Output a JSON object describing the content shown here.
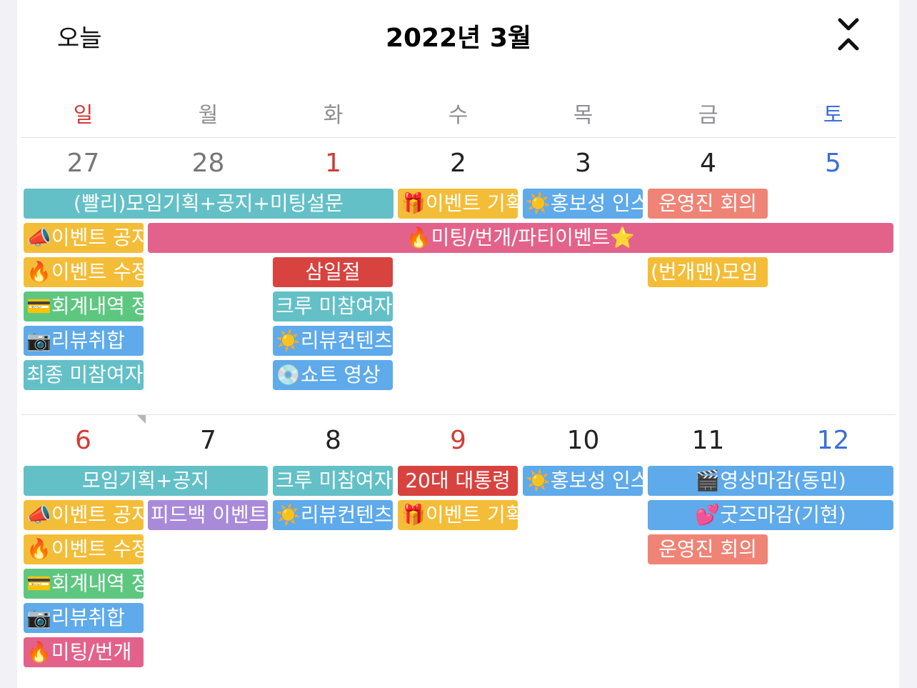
{
  "header": {
    "today_label": "오늘",
    "title": "2022년 3월",
    "toggle_icon": "chevron-collapse-expand-icon"
  },
  "weekdays": [
    "일",
    "월",
    "화",
    "수",
    "목",
    "금",
    "토"
  ],
  "weeks": [
    {
      "days": [
        "27",
        "28",
        "1",
        "2",
        "3",
        "4",
        "5"
      ],
      "events": [
        "(빨리)모임기획+공지+미팅설문",
        "🎁이벤트 기획",
        "☀️홍보성 인스타",
        "운영진 회의",
        "📣이벤트 공지",
        "🔥미팅/번개/파티이벤트⭐️",
        "🔥이벤트 수정",
        "삼일절",
        "(번개맨)모임",
        "💳회계내역 정리",
        "크루 미참여자",
        "📷리뷰취합",
        "☀️리뷰컨텐츠",
        "최종 미참여자",
        "💿쇼트 영상"
      ]
    },
    {
      "days": [
        "6",
        "7",
        "8",
        "9",
        "10",
        "11",
        "12"
      ],
      "events": [
        "모임기획+공지",
        "크루 미참여자",
        "20대 대통령",
        "☀️홍보성 인스타",
        "🎬영상마감(동민)",
        "📣이벤트 공지",
        "피드백 이벤트",
        "☀️리뷰컨텐츠",
        "🎁이벤트 기획",
        "💕굿즈마감(기현)",
        "🔥이벤트 수정",
        "운영진 회의",
        "💳회계내역 정리",
        "📷리뷰취합",
        "🔥미팅/번개"
      ]
    }
  ],
  "colors": {
    "teal": "#63c0c7",
    "orange": "#f4bd38",
    "salmon": "#ef8476",
    "pink": "#e3628b",
    "green": "#5dc77f",
    "sky": "#5eaaea",
    "crimson": "#d8433f",
    "purple": "#a98ad9",
    "sunday": "#d33b36",
    "saturday": "#3a6fd8"
  }
}
